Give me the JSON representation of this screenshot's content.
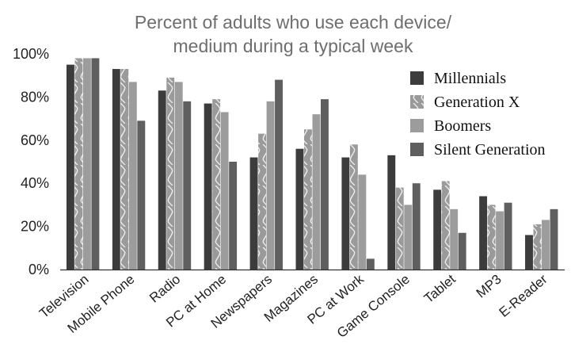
{
  "chart_data": {
    "type": "bar",
    "title_lines": [
      "Percent of adults who use each device/",
      "medium during a typical week"
    ],
    "xlabel": "",
    "ylabel": "",
    "ylim": [
      0,
      100
    ],
    "yticks": [
      "0%",
      "20%",
      "40%",
      "60%",
      "80%",
      "100%"
    ],
    "ytick_values": [
      0,
      20,
      40,
      60,
      80,
      100
    ],
    "grid": false,
    "legend_position": "top-right",
    "categories": [
      "Television",
      "Mobile Phone",
      "Radio",
      "PC at Home",
      "Newspapers",
      "Magazines",
      "PC at Work",
      "Game Console",
      "Tablet",
      "MP3",
      "E-Reader"
    ],
    "series": [
      {
        "name": "Millennials",
        "color": "#3c3c3c",
        "pattern": "solid",
        "values": [
          95,
          93,
          83,
          77,
          52,
          56,
          52,
          53,
          37,
          34,
          16
        ]
      },
      {
        "name": "Generation X",
        "color": "#9a9a9a",
        "pattern": "wave",
        "values": [
          98,
          93,
          89,
          79,
          63,
          65,
          58,
          38,
          41,
          30,
          21
        ]
      },
      {
        "name": "Boomers",
        "color": "#9c9c9c",
        "pattern": "solid",
        "values": [
          98,
          87,
          87,
          73,
          78,
          72,
          44,
          30,
          28,
          27,
          23
        ]
      },
      {
        "name": "Silent Generation",
        "color": "#5f5f5f",
        "pattern": "solid",
        "values": [
          98,
          69,
          78,
          50,
          88,
          79,
          5,
          40,
          17,
          31,
          28
        ]
      }
    ]
  }
}
